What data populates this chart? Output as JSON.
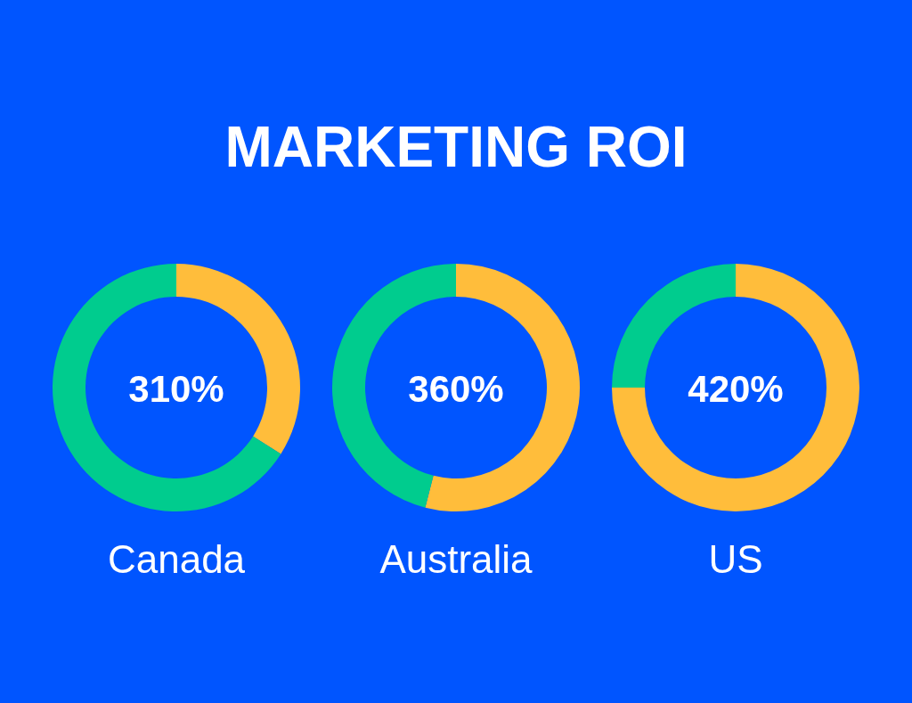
{
  "chart_data": [
    {
      "type": "donut",
      "title": "MARKETING ROI",
      "categories": [
        null,
        null
      ],
      "values": [
        34,
        66
      ],
      "colors": [
        "#ffbd3b",
        "#00cc8e"
      ],
      "annotations": [
        "310%"
      ],
      "xlabel": "Canada"
    },
    {
      "type": "donut",
      "categories": [
        null,
        null
      ],
      "values": [
        54,
        46
      ],
      "colors": [
        "#ffbd3b",
        "#00cc8e"
      ],
      "annotations": [
        "360%"
      ],
      "xlabel": "Australia"
    },
    {
      "type": "donut",
      "categories": [
        null,
        null
      ],
      "values": [
        75,
        25
      ],
      "colors": [
        "#ffbd3b",
        "#00cc8e"
      ],
      "annotations": [
        "420%"
      ],
      "xlabel": "US"
    }
  ]
}
